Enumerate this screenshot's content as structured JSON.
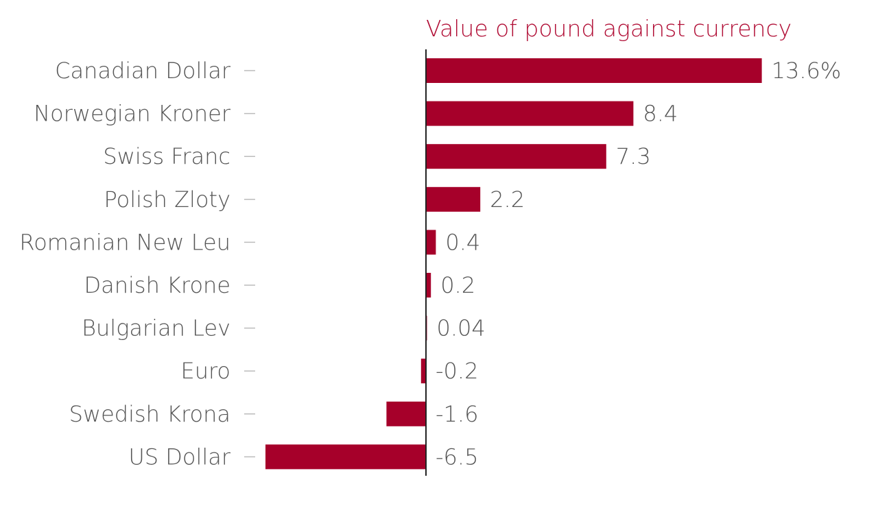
{
  "chart_data": {
    "type": "bar",
    "orientation": "horizontal",
    "title": "Value of pound against currency",
    "categories": [
      "Canadian Dollar",
      "Norwegian Kroner",
      "Swiss Franc",
      "Polish Zloty",
      "Romanian New Leu",
      "Danish Krone",
      "Bulgarian Lev",
      "Euro",
      "Swedish Krona",
      "US Dollar"
    ],
    "values": [
      13.6,
      8.4,
      7.3,
      2.2,
      0.4,
      0.2,
      0.04,
      -0.2,
      -1.6,
      -6.5
    ],
    "value_labels": [
      "13.6%",
      "8.4",
      "7.3",
      "2.2",
      "0.4",
      "0.2",
      "0.04",
      "-0.2",
      "-1.6",
      "-6.5"
    ],
    "xlim": [
      -6.5,
      13.6
    ],
    "grid": false,
    "legend": "none",
    "colors": {
      "bar": "#a6002a",
      "title": "#b00c34",
      "label": "#555555",
      "tick": "#bbbbbb",
      "axis": "#222222"
    }
  }
}
